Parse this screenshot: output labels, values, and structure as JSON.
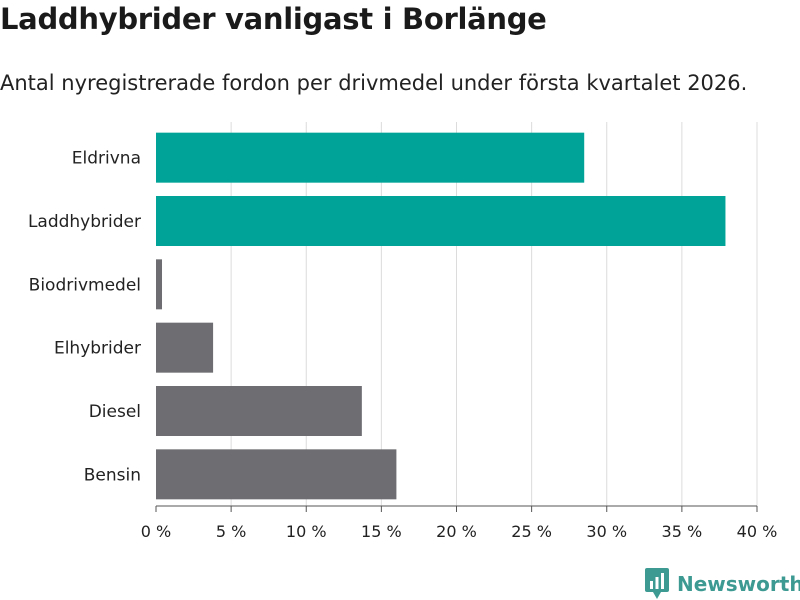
{
  "title": "Laddhybrider vanligast i Borlänge",
  "subtitle": "Antal nyregistrerade fordon per drivmedel under första kvartalet 2026.",
  "brand": "Newsworthy",
  "chart_data": {
    "type": "bar",
    "orientation": "horizontal",
    "categories": [
      "Eldrivna",
      "Laddhybrider",
      "Biodrivmedel",
      "Elhybrider",
      "Diesel",
      "Bensin"
    ],
    "values": [
      28.5,
      37.9,
      0.4,
      3.8,
      13.7,
      16.0
    ],
    "highlight": [
      true,
      true,
      false,
      false,
      false,
      false
    ],
    "xlim": [
      0,
      40
    ],
    "xticks": [
      0,
      5,
      10,
      15,
      20,
      25,
      30,
      35,
      40
    ],
    "tick_suffix": " %",
    "grid": true,
    "colors": {
      "highlight": "#00a398",
      "default": "#6d6d72",
      "grid": "#dcdcdc",
      "axis": "#555555"
    }
  }
}
